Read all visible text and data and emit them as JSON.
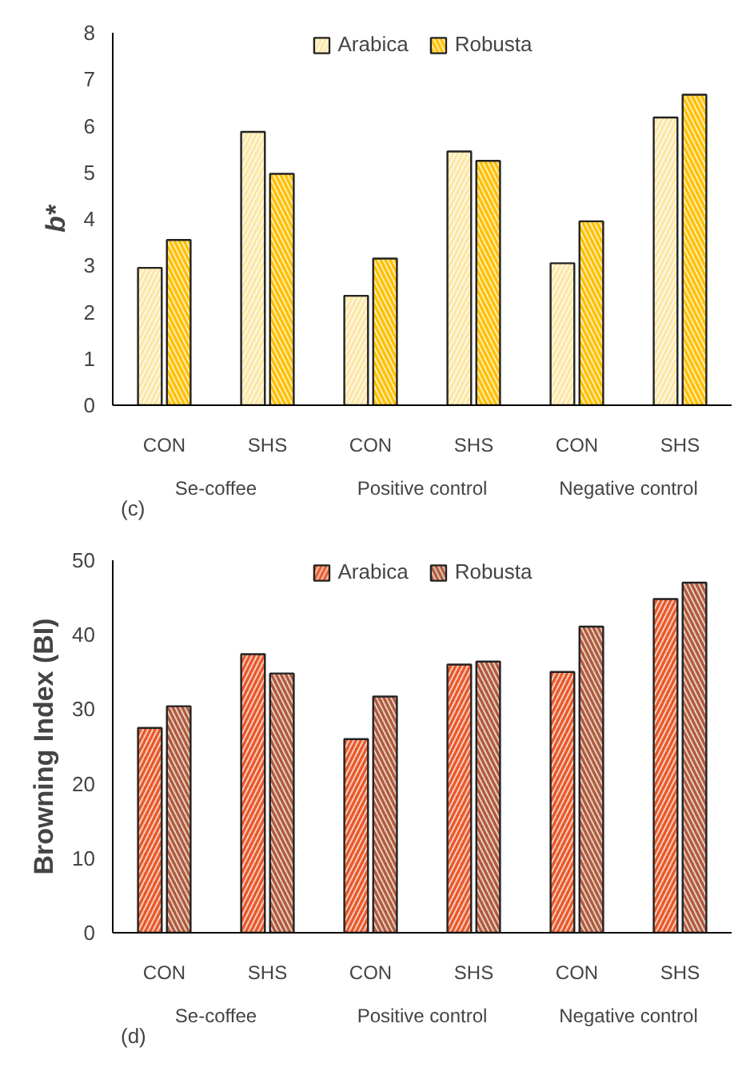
{
  "chart_data": [
    {
      "type": "bar",
      "ylabel": "b*",
      "categories": [
        "CON",
        "SHS",
        "CON",
        "SHS",
        "CON",
        "SHS"
      ],
      "series": [
        {
          "name": "Arabica",
          "color": "#fde7a6",
          "values": [
            2.95,
            5.87,
            2.35,
            5.45,
            3.05,
            6.18
          ]
        },
        {
          "name": "Robusta",
          "color": "#ffc000",
          "values": [
            3.55,
            4.97,
            3.15,
            5.25,
            3.95,
            6.67
          ]
        }
      ],
      "ylim": [
        0,
        8
      ],
      "yticks": [
        0,
        1,
        2,
        3,
        4,
        5,
        6,
        7,
        8
      ],
      "grid": false,
      "legend": "top",
      "annotations": [
        "Se-coffee",
        "Positive control",
        "Negative control",
        "(c)"
      ]
    },
    {
      "type": "bar",
      "ylabel": "Browning Index (BI)",
      "categories": [
        "CON",
        "SHS",
        "CON",
        "SHS",
        "CON",
        "SHS"
      ],
      "series": [
        {
          "name": "Arabica",
          "color": "#e8592a",
          "values": [
            27.5,
            37.4,
            26,
            36,
            35,
            44.8
          ]
        },
        {
          "name": "Robusta",
          "color": "#b05a3c",
          "values": [
            30.4,
            34.8,
            31.7,
            36.4,
            41.1,
            47
          ]
        }
      ],
      "ylim": [
        0,
        50
      ],
      "yticks": [
        0,
        10,
        20,
        30,
        40,
        50
      ],
      "grid": false,
      "legend": "top",
      "annotations": [
        "Se-coffee",
        "Positive control",
        "Negative control",
        "(d)"
      ]
    }
  ]
}
